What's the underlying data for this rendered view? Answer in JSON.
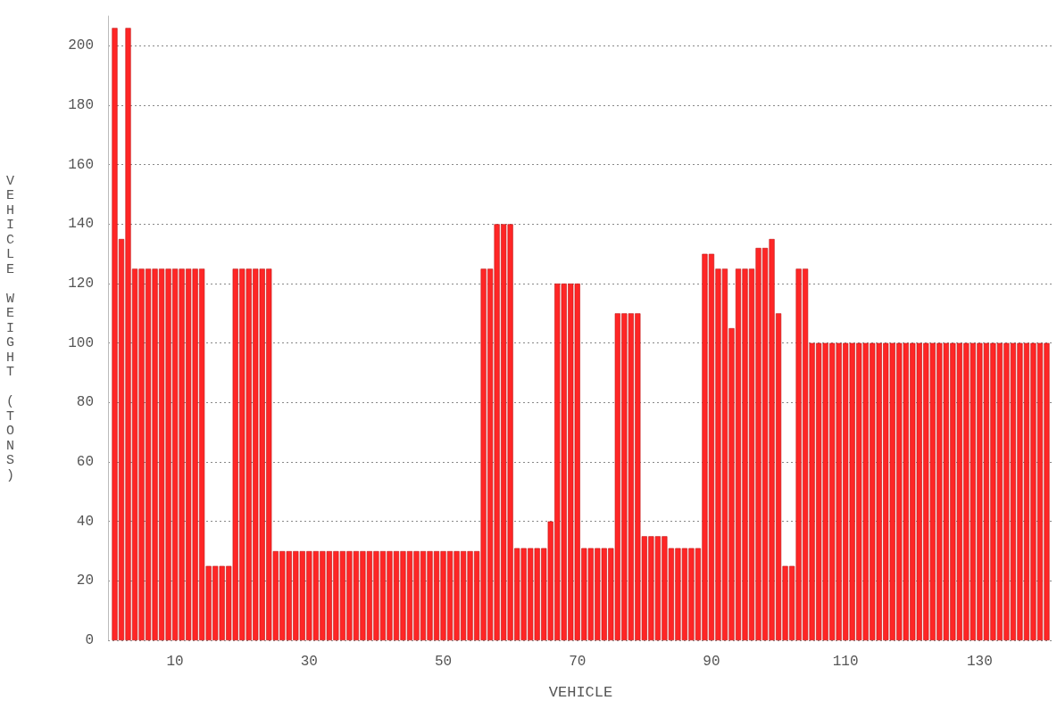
{
  "chart_data": {
    "type": "bar",
    "xlabel": "VEHICLE",
    "ylabel": "VEHICLE WEIGHT (TONS)",
    "x": [
      1,
      2,
      3,
      4,
      5,
      6,
      7,
      8,
      9,
      10,
      11,
      12,
      13,
      14,
      15,
      16,
      17,
      18,
      19,
      20,
      21,
      22,
      23,
      24,
      25,
      26,
      27,
      28,
      29,
      30,
      31,
      32,
      33,
      34,
      35,
      36,
      37,
      38,
      39,
      40,
      41,
      42,
      43,
      44,
      45,
      46,
      47,
      48,
      49,
      50,
      51,
      52,
      53,
      54,
      55,
      56,
      57,
      58,
      59,
      60,
      61,
      62,
      63,
      64,
      65,
      66,
      67,
      68,
      69,
      70,
      71,
      72,
      73,
      74,
      75,
      76,
      77,
      78,
      79,
      80,
      81,
      82,
      83,
      84,
      85,
      86,
      87,
      88,
      89,
      90,
      91,
      92,
      93,
      94,
      95,
      96,
      97,
      98,
      99,
      100,
      101,
      102,
      103,
      104,
      105,
      106,
      107,
      108,
      109,
      110,
      111,
      112,
      113,
      114,
      115,
      116,
      117,
      118,
      119,
      120,
      121,
      122,
      123,
      124,
      125,
      126,
      127,
      128,
      129,
      130,
      131,
      132,
      133,
      134,
      135,
      136,
      137,
      138,
      139,
      140
    ],
    "values": [
      206,
      135,
      206,
      125,
      125,
      125,
      125,
      125,
      125,
      125,
      125,
      125,
      125,
      125,
      25,
      25,
      25,
      25,
      125,
      125,
      125,
      125,
      125,
      125,
      30,
      30,
      30,
      30,
      30,
      30,
      30,
      30,
      30,
      30,
      30,
      30,
      30,
      30,
      30,
      30,
      30,
      30,
      30,
      30,
      30,
      30,
      30,
      30,
      30,
      30,
      30,
      30,
      30,
      30,
      30,
      125,
      125,
      140,
      140,
      140,
      31,
      31,
      31,
      31,
      31,
      40,
      120,
      120,
      120,
      120,
      31,
      31,
      31,
      31,
      31,
      110,
      110,
      110,
      110,
      35,
      35,
      35,
      35,
      31,
      31,
      31,
      31,
      31,
      130,
      130,
      125,
      125,
      105,
      125,
      125,
      125,
      132,
      132,
      135,
      110,
      25,
      25,
      125,
      125,
      100,
      100,
      100,
      100,
      100,
      100,
      100,
      100,
      100,
      100,
      100,
      100,
      100,
      100,
      100,
      100,
      100,
      100,
      100,
      100,
      100,
      100,
      100,
      100,
      100,
      100,
      100,
      100,
      100,
      100,
      100,
      100,
      100,
      100,
      100,
      100
    ],
    "color": "#ff2626",
    "xlim": [
      0,
      141
    ],
    "xticks": [
      10,
      30,
      50,
      70,
      90,
      110,
      130
    ],
    "ylim": [
      0,
      210
    ],
    "yticks": [
      0,
      20,
      40,
      60,
      80,
      100,
      120,
      140,
      160,
      180,
      200
    ],
    "grid": "y"
  }
}
